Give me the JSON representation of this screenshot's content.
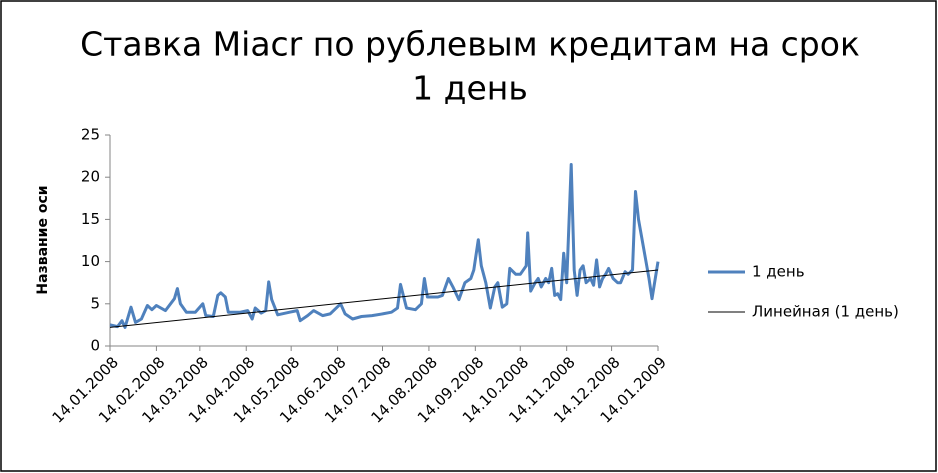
{
  "chart_data": {
    "type": "line",
    "title": [
      "Ставка Miacr по рублевым кредитам на срок",
      "1 день"
    ],
    "y_label": "Название оси",
    "xlim": [
      "14.01.2008",
      "14.01.2009"
    ],
    "xticks": [
      "14.01.2008",
      "14.02.2008",
      "14.03.2008",
      "14.04.2008",
      "14.05.2008",
      "14.06.2008",
      "14.07.2008",
      "14.08.2008",
      "14.09.2008",
      "14.10.2008",
      "14.11.2008",
      "14.12.2008",
      "14.01.2009"
    ],
    "ylim": [
      0,
      25
    ],
    "yticks": [
      0,
      5,
      10,
      15,
      20,
      25
    ],
    "grid": false,
    "legend": "right",
    "series": [
      {
        "name": "1 день",
        "color": "#4f81bd",
        "width": 3,
        "x": [
          "14.01.2008",
          "19.01.2008",
          "22.01.2008",
          "24.01.2008",
          "28.01.2008",
          "31.01.2008",
          "04.02.2008",
          "08.02.2008",
          "11.02.2008",
          "14.02.2008",
          "20.02.2008",
          "26.02.2008",
          "28.02.2008",
          "01.03.2008",
          "05.03.2008",
          "11.03.2008",
          "16.03.2008",
          "18.03.2008",
          "23.03.2008",
          "26.03.2008",
          "28.03.2008",
          "31.03.2008",
          "02.04.2008",
          "10.04.2008",
          "15.04.2008",
          "18.04.2008",
          "20.04.2008",
          "24.04.2008",
          "27.04.2008",
          "29.04.2008",
          "01.05.2008",
          "05.05.2008",
          "13.05.2008",
          "18.05.2008",
          "20.05.2008",
          "25.05.2008",
          "29.05.2008",
          "04.06.2008",
          "09.06.2008",
          "16.06.2008",
          "19.06.2008",
          "24.06.2008",
          "30.06.2008",
          "07.07.2008",
          "14.07.2008",
          "20.07.2008",
          "24.07.2008",
          "26.07.2008",
          "30.07.2008",
          "05.08.2008",
          "09.08.2008",
          "11.08.2008",
          "13.08.2008",
          "20.08.2008",
          "23.08.2008",
          "27.08.2008",
          "30.08.2008",
          "03.09.2008",
          "07.09.2008",
          "11.09.2008",
          "13.09.2008",
          "16.09.2008",
          "18.09.2008",
          "21.09.2008",
          "24.09.2008",
          "27.09.2008",
          "29.09.2008",
          "02.10.2008",
          "05.10.2008",
          "07.10.2008",
          "11.10.2008",
          "14.10.2008",
          "18.10.2008",
          "19.10.2008",
          "21.10.2008",
          "24.10.2008",
          "26.10.2008",
          "28.10.2008",
          "31.10.2008",
          "02.11.2008",
          "04.11.2008",
          "06.11.2008",
          "08.11.2008",
          "10.11.2008",
          "12.11.2008",
          "14.11.2008",
          "17.11.2008",
          "19.11.2008",
          "21.11.2008",
          "23.11.2008",
          "25.11.2008",
          "27.11.2008",
          "30.11.2008",
          "02.12.2008",
          "04.12.2008",
          "06.12.2008",
          "08.12.2008",
          "10.12.2008",
          "12.12.2008",
          "15.12.2008",
          "18.12.2008",
          "20.12.2008",
          "23.12.2008",
          "25.12.2008",
          "28.12.2008",
          "30.12.2008",
          "01.01.2009",
          "04.01.2009",
          "08.01.2009",
          "10.01.2009",
          "14.01.2009"
        ],
        "values": [
          2.5,
          2.3,
          3.0,
          2.2,
          4.6,
          2.8,
          3.2,
          4.8,
          4.3,
          4.8,
          4.2,
          5.6,
          6.8,
          5.0,
          4.0,
          4.0,
          5.0,
          3.6,
          3.5,
          6.0,
          6.3,
          5.8,
          4.0,
          4.0,
          4.2,
          3.2,
          4.5,
          3.9,
          4.2,
          7.6,
          5.5,
          3.7,
          4.0,
          4.2,
          3.0,
          3.6,
          4.2,
          3.6,
          3.8,
          5.0,
          3.8,
          3.2,
          3.5,
          3.6,
          3.8,
          4.0,
          4.5,
          7.3,
          4.5,
          4.3,
          5.0,
          8.0,
          5.8,
          5.8,
          6.0,
          8.0,
          7.0,
          5.5,
          7.5,
          8.0,
          9.0,
          12.6,
          9.5,
          7.5,
          4.5,
          7.0,
          7.5,
          4.6,
          5.0,
          9.2,
          8.5,
          8.5,
          9.5,
          13.4,
          6.5,
          7.5,
          8.0,
          7.0,
          8.0,
          7.5,
          9.2,
          6.0,
          6.2,
          5.5,
          11.0,
          7.5,
          21.5,
          9.0,
          6.0,
          9.0,
          9.5,
          7.5,
          8.0,
          7.2,
          10.2,
          7.0,
          8.0,
          8.5,
          9.2,
          8.0,
          7.5,
          7.5,
          8.8,
          8.5,
          9.0,
          18.3,
          15.0,
          12.0,
          8.0,
          5.6,
          10.0
        ]
      },
      {
        "name": "Линейная (1 день)",
        "color": "#000000",
        "width": 1,
        "x": [
          "14.01.2008",
          "14.01.2009"
        ],
        "values": [
          2.2,
          9.0
        ]
      }
    ]
  }
}
